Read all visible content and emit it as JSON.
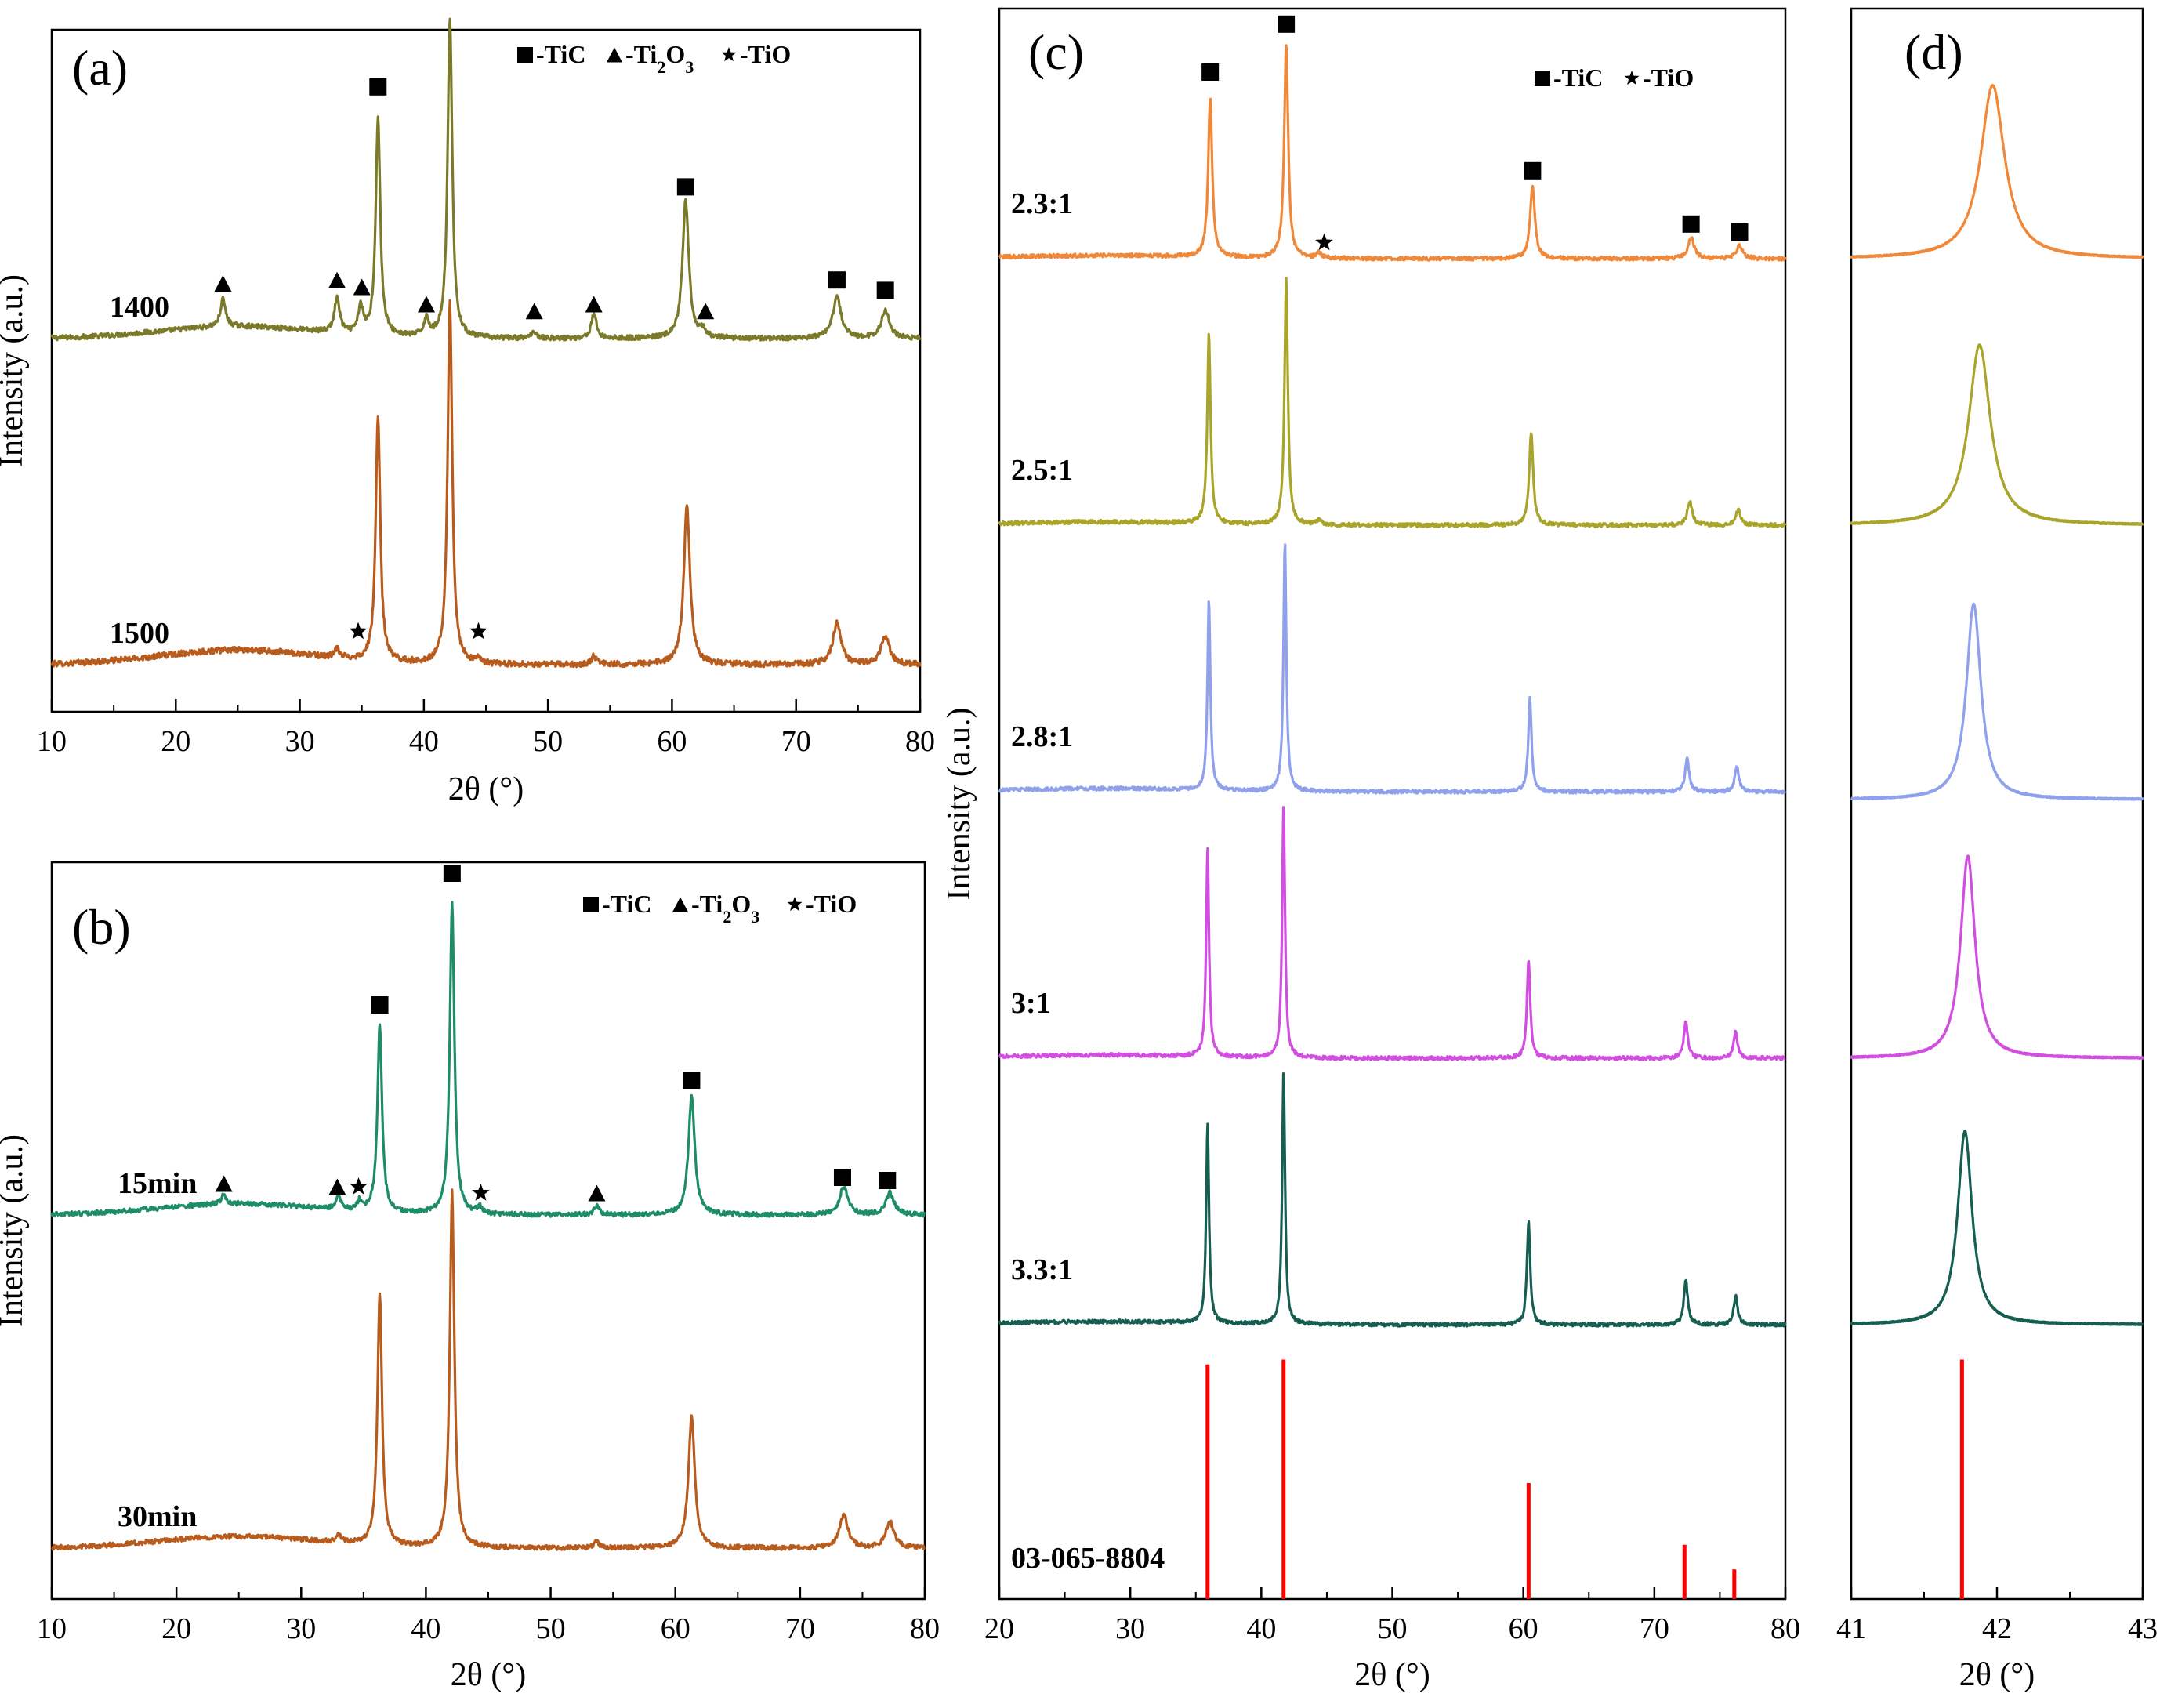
{
  "chart_data": [
    {
      "panel": "a",
      "type": "line",
      "title": "(a)",
      "xlabel": "2θ (°)",
      "ylabel": "Intensity (a.u.)",
      "xlim": [
        10,
        80
      ],
      "xticks": [
        "10",
        "20",
        "30",
        "40",
        "50",
        "60",
        "70",
        "80"
      ],
      "legend": [
        {
          "symbol": "square",
          "label": "-TiC"
        },
        {
          "symbol": "triangle",
          "label": "-Ti2O3"
        },
        {
          "symbol": "star",
          "label": "-TiO"
        }
      ],
      "series": [
        {
          "name": "1400",
          "color": "#7a7a2a",
          "peaks": [
            {
              "x": 23.8,
              "h": 0.08,
              "w": 0.25
            },
            {
              "x": 33.0,
              "h": 0.1,
              "w": 0.25
            },
            {
              "x": 34.9,
              "h": 0.08,
              "w": 0.22
            },
            {
              "x": 36.3,
              "h": 0.63,
              "w": 0.22
            },
            {
              "x": 40.2,
              "h": 0.05,
              "w": 0.25
            },
            {
              "x": 42.1,
              "h": 0.93,
              "w": 0.22
            },
            {
              "x": 48.9,
              "h": 0.02,
              "w": 0.25
            },
            {
              "x": 53.7,
              "h": 0.07,
              "w": 0.25
            },
            {
              "x": 61.1,
              "h": 0.4,
              "w": 0.3
            },
            {
              "x": 62.5,
              "h": 0.02,
              "w": 0.25
            },
            {
              "x": 73.3,
              "h": 0.12,
              "w": 0.4
            },
            {
              "x": 77.2,
              "h": 0.08,
              "w": 0.4
            }
          ],
          "markers": [
            {
              "x": 23.8,
              "symbol": "triangle",
              "h": 0.16
            },
            {
              "x": 33.0,
              "symbol": "triangle",
              "h": 0.17
            },
            {
              "x": 35.0,
              "symbol": "triangle",
              "h": 0.15
            },
            {
              "x": 36.3,
              "symbol": "square",
              "h": 0.73
            },
            {
              "x": 40.2,
              "symbol": "triangle",
              "h": 0.1
            },
            {
              "x": 42.1,
              "symbol": "square",
              "h": 1.01
            },
            {
              "x": 48.9,
              "symbol": "triangle",
              "h": 0.08
            },
            {
              "x": 53.7,
              "symbol": "triangle",
              "h": 0.1
            },
            {
              "x": 61.1,
              "symbol": "square",
              "h": 0.44
            },
            {
              "x": 62.7,
              "symbol": "triangle",
              "h": 0.08
            },
            {
              "x": 73.3,
              "symbol": "square",
              "h": 0.17
            },
            {
              "x": 77.2,
              "symbol": "square",
              "h": 0.14
            }
          ]
        },
        {
          "name": "1500",
          "color": "#b85c1e",
          "peaks": [
            {
              "x": 33.0,
              "h": 0.02,
              "w": 0.25
            },
            {
              "x": 36.3,
              "h": 0.59,
              "w": 0.22
            },
            {
              "x": 42.1,
              "h": 0.87,
              "w": 0.22
            },
            {
              "x": 44.3,
              "h": 0.01,
              "w": 0.25
            },
            {
              "x": 53.7,
              "h": 0.02,
              "w": 0.25
            },
            {
              "x": 61.2,
              "h": 0.38,
              "w": 0.3
            },
            {
              "x": 73.3,
              "h": 0.1,
              "w": 0.4
            },
            {
              "x": 77.2,
              "h": 0.07,
              "w": 0.4
            }
          ],
          "markers": [
            {
              "x": 34.7,
              "symbol": "star",
              "h": 0.08
            },
            {
              "x": 44.4,
              "symbol": "star",
              "h": 0.08
            }
          ]
        }
      ]
    },
    {
      "panel": "b",
      "type": "line",
      "title": "(b)",
      "xlabel": "2θ (°)",
      "ylabel": "Intensity (a.u.)",
      "xlim": [
        10,
        80
      ],
      "xticks": [
        "10",
        "20",
        "30",
        "40",
        "50",
        "60",
        "70",
        "80"
      ],
      "legend": [
        {
          "symbol": "square",
          "label": "-TiC"
        },
        {
          "symbol": "triangle",
          "label": "-Ti2O3"
        },
        {
          "symbol": "star",
          "label": "-TiO"
        }
      ],
      "series": [
        {
          "name": "15min",
          "color": "#1e8c68",
          "peaks": [
            {
              "x": 23.8,
              "h": 0.03,
              "w": 0.25
            },
            {
              "x": 33.0,
              "h": 0.04,
              "w": 0.25
            },
            {
              "x": 34.7,
              "h": 0.03,
              "w": 0.22
            },
            {
              "x": 36.3,
              "h": 0.6,
              "w": 0.22
            },
            {
              "x": 42.1,
              "h": 1.0,
              "w": 0.22
            },
            {
              "x": 44.3,
              "h": 0.02,
              "w": 0.25
            },
            {
              "x": 53.7,
              "h": 0.03,
              "w": 0.25
            },
            {
              "x": 61.3,
              "h": 0.38,
              "w": 0.3
            },
            {
              "x": 73.5,
              "h": 0.09,
              "w": 0.4
            },
            {
              "x": 77.2,
              "h": 0.07,
              "w": 0.4
            }
          ],
          "markers": [
            {
              "x": 23.8,
              "symbol": "triangle",
              "h": 0.1
            },
            {
              "x": 32.9,
              "symbol": "triangle",
              "h": 0.09
            },
            {
              "x": 34.6,
              "symbol": "star",
              "h": 0.09
            },
            {
              "x": 36.3,
              "symbol": "square",
              "h": 0.67
            },
            {
              "x": 42.1,
              "symbol": "square",
              "h": 1.09
            },
            {
              "x": 44.4,
              "symbol": "star",
              "h": 0.07
            },
            {
              "x": 53.7,
              "symbol": "triangle",
              "h": 0.07
            },
            {
              "x": 61.3,
              "symbol": "square",
              "h": 0.43
            },
            {
              "x": 73.4,
              "symbol": "square",
              "h": 0.12
            },
            {
              "x": 77.0,
              "symbol": "square",
              "h": 0.11
            }
          ]
        },
        {
          "name": "30min",
          "color": "#b85c1e",
          "peaks": [
            {
              "x": 33.0,
              "h": 0.02,
              "w": 0.25
            },
            {
              "x": 36.3,
              "h": 0.77,
              "w": 0.22
            },
            {
              "x": 42.1,
              "h": 1.08,
              "w": 0.22
            },
            {
              "x": 53.7,
              "h": 0.02,
              "w": 0.25
            },
            {
              "x": 61.3,
              "h": 0.4,
              "w": 0.3
            },
            {
              "x": 73.5,
              "h": 0.1,
              "w": 0.4
            },
            {
              "x": 77.2,
              "h": 0.08,
              "w": 0.4
            }
          ],
          "markers": []
        }
      ]
    },
    {
      "panel": "c",
      "type": "line",
      "title": "(c)",
      "xlabel": "2θ (°)",
      "ylabel": "Intensity (a.u.)",
      "xlim": [
        20,
        80
      ],
      "xticks": [
        "20",
        "30",
        "40",
        "50",
        "60",
        "70",
        "80"
      ],
      "legend": [
        {
          "symbol": "square",
          "label": "-TiC"
        },
        {
          "symbol": "star",
          "label": "-TiO"
        }
      ],
      "series": [
        {
          "name": "2.3:1",
          "color": "#f0883a",
          "peaks": [
            {
              "x": 36.1,
              "h": 0.6,
              "w": 0.18
            },
            {
              "x": 41.9,
              "h": 0.8,
              "w": 0.18
            },
            {
              "x": 44.4,
              "h": 0.02,
              "w": 0.2
            },
            {
              "x": 60.7,
              "h": 0.27,
              "w": 0.22
            },
            {
              "x": 72.8,
              "h": 0.08,
              "w": 0.28
            },
            {
              "x": 76.5,
              "h": 0.05,
              "w": 0.28
            }
          ],
          "markers": [
            {
              "x": 36.1,
              "symbol": "square",
              "h": 0.7
            },
            {
              "x": 41.9,
              "symbol": "square",
              "h": 0.88
            },
            {
              "x": 44.8,
              "symbol": "star",
              "h": 0.06
            },
            {
              "x": 60.7,
              "symbol": "square",
              "h": 0.33
            },
            {
              "x": 72.8,
              "symbol": "square",
              "h": 0.13
            },
            {
              "x": 76.5,
              "symbol": "square",
              "h": 0.1
            }
          ]
        },
        {
          "name": "2.5:1",
          "color": "#a9a52a",
          "peaks": [
            {
              "x": 36.0,
              "h": 0.71,
              "w": 0.15
            },
            {
              "x": 41.9,
              "h": 0.93,
              "w": 0.15
            },
            {
              "x": 44.4,
              "h": 0.02,
              "w": 0.2
            },
            {
              "x": 60.6,
              "h": 0.35,
              "w": 0.18
            },
            {
              "x": 72.7,
              "h": 0.09,
              "w": 0.22
            },
            {
              "x": 76.4,
              "h": 0.06,
              "w": 0.22
            }
          ],
          "markers": []
        },
        {
          "name": "2.8:1",
          "color": "#8fa0ec",
          "peaks": [
            {
              "x": 36.0,
              "h": 0.74,
              "w": 0.13
            },
            {
              "x": 41.8,
              "h": 0.96,
              "w": 0.13
            },
            {
              "x": 60.5,
              "h": 0.36,
              "w": 0.15
            },
            {
              "x": 72.5,
              "h": 0.13,
              "w": 0.18
            },
            {
              "x": 76.3,
              "h": 0.1,
              "w": 0.18
            }
          ],
          "markers": []
        },
        {
          "name": "3:1",
          "color": "#d24ee0",
          "peaks": [
            {
              "x": 35.9,
              "h": 0.8,
              "w": 0.13
            },
            {
              "x": 41.7,
              "h": 0.98,
              "w": 0.13
            },
            {
              "x": 60.4,
              "h": 0.38,
              "w": 0.15
            },
            {
              "x": 72.4,
              "h": 0.14,
              "w": 0.18
            },
            {
              "x": 76.2,
              "h": 0.1,
              "w": 0.18
            }
          ],
          "markers": []
        },
        {
          "name": "3.3:1",
          "color": "#175e52",
          "peaks": [
            {
              "x": 35.9,
              "h": 0.77,
              "w": 0.13
            },
            {
              "x": 41.7,
              "h": 0.98,
              "w": 0.13
            },
            {
              "x": 60.4,
              "h": 0.4,
              "w": 0.15
            },
            {
              "x": 72.4,
              "h": 0.17,
              "w": 0.18
            },
            {
              "x": 76.2,
              "h": 0.11,
              "w": 0.18
            }
          ],
          "markers": []
        }
      ],
      "reference": {
        "name": "03-065-8804",
        "color": "#ff0000",
        "sticks": [
          {
            "x": 35.9,
            "h": 0.95
          },
          {
            "x": 41.7,
            "h": 0.97
          },
          {
            "x": 60.4,
            "h": 0.47
          },
          {
            "x": 72.3,
            "h": 0.22
          },
          {
            "x": 76.1,
            "h": 0.12
          }
        ]
      }
    },
    {
      "panel": "d",
      "type": "line",
      "title": "(d)",
      "xlabel": "2θ (°)",
      "xlim": [
        41,
        43
      ],
      "xticks": [
        "41",
        "42",
        "43"
      ],
      "series": [
        {
          "name": "2.3:1",
          "color": "#f0883a",
          "center": 41.97,
          "h": 0.85,
          "w": 0.1
        },
        {
          "name": "2.5:1",
          "color": "#a9a52a",
          "center": 41.88,
          "h": 0.82,
          "w": 0.09
        },
        {
          "name": "2.8:1",
          "color": "#8fa0ec",
          "center": 41.84,
          "h": 0.86,
          "w": 0.06
        },
        {
          "name": "3:1",
          "color": "#d24ee0",
          "center": 41.8,
          "h": 0.86,
          "w": 0.06
        },
        {
          "name": "3.3:1",
          "color": "#175e52",
          "center": 41.78,
          "h": 0.85,
          "w": 0.06
        }
      ],
      "reference": {
        "name": "03-065-8804",
        "color": "#ff0000",
        "sticks": [
          {
            "x": 41.76,
            "h": 0.97
          }
        ]
      }
    }
  ]
}
